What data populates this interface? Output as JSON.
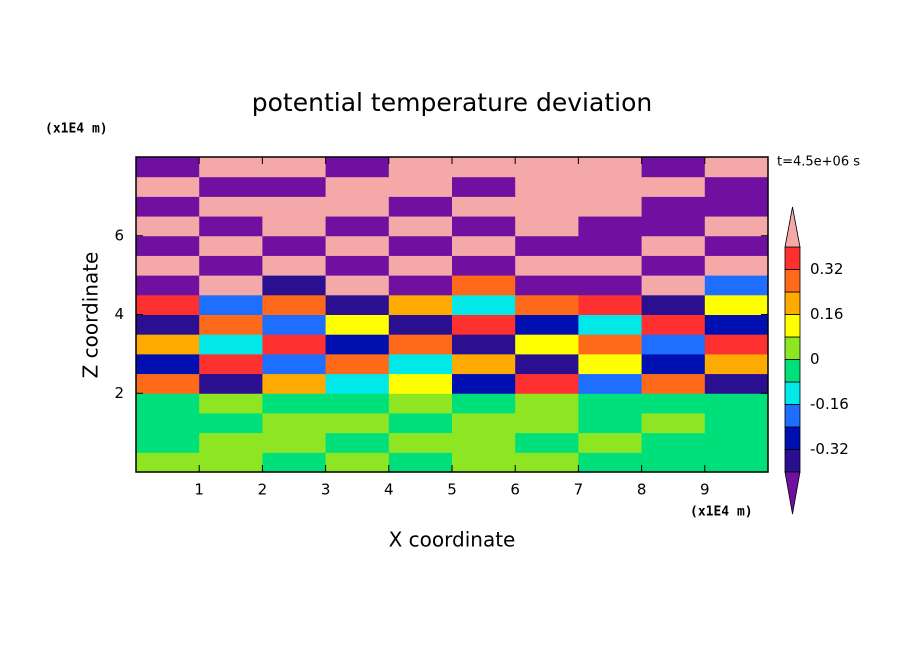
{
  "chart_data": {
    "type": "contour",
    "title": "potential temperature deviation",
    "x_label": "X coordinate",
    "y_label": "Z coordinate",
    "x_unit": "(x1E4 m)",
    "y_unit": "(x1E4 m)",
    "annotation": "t=4.5e+06 s",
    "xlim": [
      0,
      10
    ],
    "ylim": [
      0,
      8
    ],
    "xticks": [
      1,
      2,
      3,
      4,
      5,
      6,
      7,
      8,
      9
    ],
    "yticks": [
      2,
      4,
      6
    ],
    "x": [
      0.5,
      1.5,
      2.5,
      3.5,
      4.5,
      5.5,
      6.5,
      7.5,
      8.5,
      9.5
    ],
    "y": [
      0.25,
      0.75,
      1.25,
      1.75,
      2.25,
      2.75,
      3.25,
      3.75,
      4.25,
      4.75,
      5.25,
      5.75,
      6.25,
      6.75,
      7.25,
      7.75
    ],
    "z": [
      [
        0.04,
        0.04,
        -0.04,
        0.04,
        -0.04,
        0.04,
        0.04,
        -0.04,
        -0.04,
        -0.04
      ],
      [
        -0.04,
        0.04,
        0.04,
        -0.04,
        0.04,
        0.04,
        -0.04,
        0.04,
        -0.04,
        -0.04
      ],
      [
        -0.04,
        -0.04,
        0.04,
        0.04,
        -0.04,
        0.04,
        0.04,
        -0.04,
        0.04,
        -0.04
      ],
      [
        -0.04,
        0.04,
        -0.04,
        -0.04,
        0.04,
        -0.04,
        0.04,
        -0.04,
        -0.04,
        -0.04
      ],
      [
        0.28,
        -0.36,
        0.2,
        -0.12,
        0.12,
        -0.28,
        0.36,
        -0.2,
        0.28,
        -0.36
      ],
      [
        -0.28,
        0.36,
        -0.2,
        0.28,
        -0.12,
        0.2,
        -0.36,
        0.12,
        -0.28,
        0.2
      ],
      [
        0.2,
        -0.12,
        0.36,
        -0.28,
        0.28,
        -0.36,
        0.12,
        0.28,
        -0.2,
        0.36
      ],
      [
        -0.36,
        0.28,
        -0.2,
        0.12,
        -0.36,
        0.36,
        -0.28,
        -0.12,
        0.36,
        -0.28
      ],
      [
        0.36,
        -0.2,
        0.28,
        -0.36,
        0.2,
        -0.12,
        0.28,
        0.36,
        -0.36,
        0.12
      ],
      [
        -0.5,
        0.5,
        -0.36,
        0.5,
        -0.5,
        0.28,
        -0.5,
        -0.5,
        0.5,
        -0.2
      ],
      [
        0.5,
        -0.5,
        0.5,
        -0.5,
        0.5,
        -0.5,
        0.5,
        0.5,
        -0.5,
        0.5
      ],
      [
        -0.5,
        0.5,
        -0.5,
        0.5,
        -0.5,
        0.5,
        -0.5,
        -0.5,
        0.5,
        -0.5
      ],
      [
        0.5,
        -0.5,
        0.5,
        -0.5,
        0.5,
        -0.5,
        0.5,
        -0.5,
        -0.5,
        0.5
      ],
      [
        -0.5,
        0.5,
        0.5,
        0.5,
        -0.5,
        0.5,
        0.5,
        0.5,
        -0.5,
        -0.5
      ],
      [
        0.5,
        -0.5,
        -0.5,
        0.5,
        0.5,
        -0.5,
        0.5,
        0.5,
        0.5,
        -0.5
      ],
      [
        -0.5,
        0.5,
        0.5,
        -0.5,
        0.5,
        0.5,
        0.5,
        0.5,
        -0.5,
        0.5
      ]
    ],
    "colorbar": {
      "levels": [
        -0.4,
        -0.32,
        -0.24,
        -0.16,
        -0.08,
        0,
        0.08,
        0.16,
        0.24,
        0.32,
        0.4
      ],
      "colors": [
        "#7010a0",
        "#2a1090",
        "#0010b0",
        "#1e6fff",
        "#00e8e8",
        "#00e07a",
        "#8ee622",
        "#ffff00",
        "#ffaa00",
        "#ff6a1a",
        "#ff3030",
        "#f4a8a8"
      ],
      "ticks": [
        -0.32,
        -0.16,
        0,
        0.16,
        0.32
      ]
    }
  }
}
